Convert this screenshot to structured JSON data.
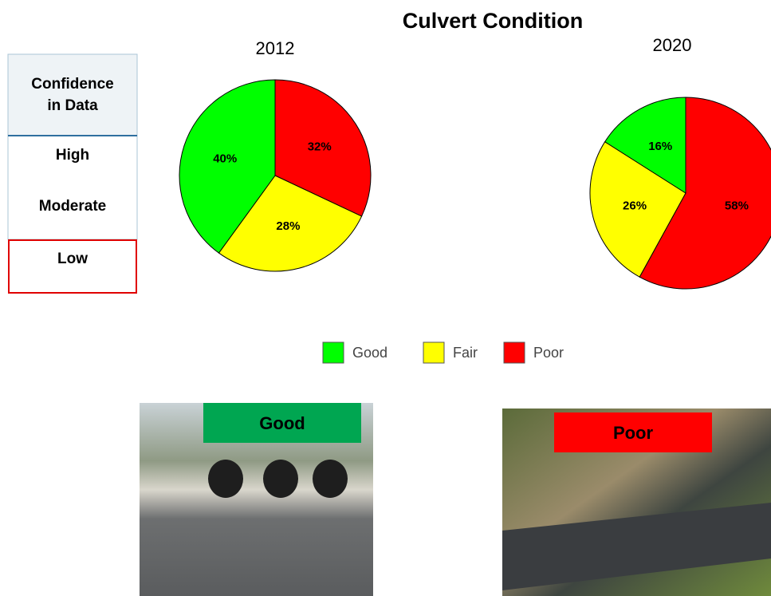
{
  "title": "Culvert Condition",
  "confidence_table": {
    "header": "Confidence in Data",
    "rows": [
      "High",
      "Moderate",
      "Low"
    ]
  },
  "chart_data": [
    {
      "type": "pie",
      "title": "2012",
      "categories": [
        "Good",
        "Fair",
        "Poor"
      ],
      "values": [
        40,
        28,
        32
      ],
      "value_labels": [
        "40%",
        "28%",
        "32%"
      ],
      "colors": [
        "#00ff00",
        "#ffff00",
        "#ff0000"
      ]
    },
    {
      "type": "pie",
      "title": "2020",
      "categories": [
        "Good",
        "Fair",
        "Poor"
      ],
      "values": [
        16,
        26,
        58
      ],
      "value_labels": [
        "16%",
        "26%",
        "58%"
      ],
      "colors": [
        "#00ff00",
        "#ffff00",
        "#ff0000"
      ]
    }
  ],
  "photos": [
    "Good",
    "Poor"
  ]
}
